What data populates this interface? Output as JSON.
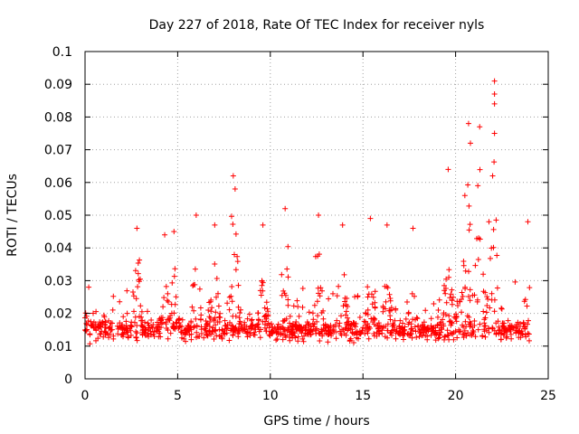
{
  "chart_data": {
    "type": "scatter",
    "title": "Day 227 of 2018, Rate Of TEC Index for receiver nyls",
    "xlabel": "GPS time / hours",
    "ylabel": "ROTI / TECUs",
    "xlim": [
      0,
      25
    ],
    "ylim": [
      0,
      0.1
    ],
    "xticks": [
      0,
      5,
      10,
      15,
      20,
      25
    ],
    "yticks": [
      0,
      0.01,
      0.02,
      0.03,
      0.04,
      0.05,
      0.06,
      0.07,
      0.08,
      0.09,
      0.1
    ],
    "xtick_labels": [
      "0",
      "5",
      "10",
      "15",
      "20",
      "25"
    ],
    "ytick_labels": [
      "0",
      "0.01",
      "0.02",
      "0.03",
      "0.04",
      "0.05",
      "0.06",
      "0.07",
      "0.08",
      "0.09",
      "0.1"
    ],
    "grid": true,
    "marker": "+",
    "color": "#ff0000",
    "series": [
      {
        "name": "ROTI",
        "x_range": [
          0,
          24
        ],
        "baseline_band": [
          0.008,
          0.022
        ],
        "notable_spikes": [
          {
            "x": 0.2,
            "y": 0.028
          },
          {
            "x": 2.8,
            "y": 0.046
          },
          {
            "x": 4.3,
            "y": 0.044
          },
          {
            "x": 4.8,
            "y": 0.045
          },
          {
            "x": 6.0,
            "y": 0.05
          },
          {
            "x": 7.0,
            "y": 0.047
          },
          {
            "x": 8.0,
            "y": 0.062
          },
          {
            "x": 8.1,
            "y": 0.058
          },
          {
            "x": 9.6,
            "y": 0.047
          },
          {
            "x": 10.8,
            "y": 0.052
          },
          {
            "x": 12.6,
            "y": 0.05
          },
          {
            "x": 13.9,
            "y": 0.047
          },
          {
            "x": 15.4,
            "y": 0.049
          },
          {
            "x": 16.3,
            "y": 0.047
          },
          {
            "x": 17.7,
            "y": 0.046
          },
          {
            "x": 19.6,
            "y": 0.064
          },
          {
            "x": 20.5,
            "y": 0.056
          },
          {
            "x": 20.7,
            "y": 0.078
          },
          {
            "x": 20.8,
            "y": 0.072
          },
          {
            "x": 21.3,
            "y": 0.077
          },
          {
            "x": 21.2,
            "y": 0.059
          },
          {
            "x": 22.1,
            "y": 0.091
          },
          {
            "x": 22.1,
            "y": 0.087
          },
          {
            "x": 22.1,
            "y": 0.084
          },
          {
            "x": 22.1,
            "y": 0.075
          },
          {
            "x": 22.0,
            "y": 0.062
          },
          {
            "x": 21.8,
            "y": 0.048
          },
          {
            "x": 23.9,
            "y": 0.048
          }
        ]
      }
    ]
  }
}
